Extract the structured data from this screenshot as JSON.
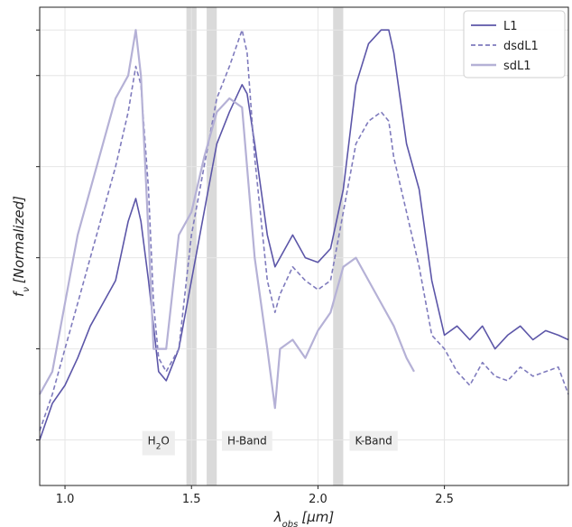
{
  "chart_data": {
    "type": "line",
    "xlabel": "λobs [μm]",
    "xlabel_parts": {
      "sym": "λ",
      "sub": "obs",
      "unit": "[μm]"
    },
    "ylabel": "fν [Normalized]",
    "ylabel_parts": {
      "sym": "f",
      "sub": "ν",
      "rest": "[Normalized]"
    },
    "xlim": [
      0.9,
      2.99
    ],
    "ylim": [
      0,
      1.05
    ],
    "x_ticks": [
      1.0,
      1.5,
      2.0,
      2.5
    ],
    "x_tick_labels": [
      "1.0",
      "1.5",
      "2.0",
      "2.5"
    ],
    "y_ticks": [
      0.1,
      0.3,
      0.5,
      0.7,
      0.9,
      1.0
    ],
    "grid": true,
    "legend": "top-right",
    "colors": {
      "L1": "#5c56a8",
      "dsdL1": "#7f7bbd",
      "sdL1": "#b5b1d6",
      "band": "#d6d6d6",
      "label_bg": "#eeeeee"
    },
    "absorption_bands": [
      [
        1.48,
        1.52
      ],
      [
        1.56,
        1.6
      ],
      [
        2.06,
        2.1
      ]
    ],
    "band_labels": [
      {
        "text": "H",
        "sub": "2",
        "tail": "O",
        "x": 1.37
      },
      {
        "text": "H-Band",
        "sub": "",
        "tail": "",
        "x": 1.72
      },
      {
        "text": "K-Band",
        "sub": "",
        "tail": "",
        "x": 2.22
      }
    ],
    "series": [
      {
        "name": "L1",
        "style": "solid",
        "x": [
          0.9,
          0.95,
          1.0,
          1.05,
          1.1,
          1.15,
          1.2,
          1.25,
          1.28,
          1.3,
          1.33,
          1.35,
          1.37,
          1.4,
          1.45,
          1.5,
          1.55,
          1.6,
          1.65,
          1.7,
          1.72,
          1.75,
          1.8,
          1.83,
          1.85,
          1.9,
          1.95,
          2.0,
          2.05,
          2.1,
          2.15,
          2.2,
          2.25,
          2.28,
          2.3,
          2.35,
          2.4,
          2.45,
          2.5,
          2.55,
          2.6,
          2.65,
          2.7,
          2.75,
          2.8,
          2.85,
          2.9,
          2.95,
          2.99
        ],
        "y": [
          0.1,
          0.18,
          0.22,
          0.28,
          0.35,
          0.4,
          0.45,
          0.58,
          0.63,
          0.58,
          0.45,
          0.35,
          0.25,
          0.23,
          0.3,
          0.45,
          0.6,
          0.75,
          0.82,
          0.88,
          0.86,
          0.75,
          0.55,
          0.48,
          0.5,
          0.55,
          0.5,
          0.49,
          0.52,
          0.65,
          0.88,
          0.97,
          1.0,
          1.0,
          0.95,
          0.75,
          0.65,
          0.45,
          0.33,
          0.35,
          0.32,
          0.35,
          0.3,
          0.33,
          0.35,
          0.32,
          0.34,
          0.33,
          0.32
        ]
      },
      {
        "name": "dsdL1",
        "style": "dashed",
        "x": [
          0.9,
          0.95,
          1.0,
          1.05,
          1.1,
          1.15,
          1.2,
          1.25,
          1.28,
          1.3,
          1.33,
          1.35,
          1.37,
          1.4,
          1.45,
          1.5,
          1.55,
          1.6,
          1.65,
          1.7,
          1.72,
          1.75,
          1.8,
          1.83,
          1.85,
          1.9,
          1.95,
          2.0,
          2.05,
          2.1,
          2.15,
          2.2,
          2.25,
          2.28,
          2.3,
          2.35,
          2.4,
          2.45,
          2.5,
          2.55,
          2.6,
          2.65,
          2.7,
          2.75,
          2.8,
          2.85,
          2.9,
          2.95,
          2.99
        ],
        "y": [
          0.12,
          0.2,
          0.3,
          0.4,
          0.5,
          0.6,
          0.7,
          0.82,
          0.92,
          0.88,
          0.65,
          0.4,
          0.28,
          0.25,
          0.3,
          0.55,
          0.7,
          0.85,
          0.92,
          1.0,
          0.95,
          0.72,
          0.45,
          0.38,
          0.42,
          0.48,
          0.45,
          0.43,
          0.45,
          0.6,
          0.75,
          0.8,
          0.82,
          0.8,
          0.72,
          0.6,
          0.48,
          0.33,
          0.3,
          0.25,
          0.22,
          0.27,
          0.24,
          0.23,
          0.26,
          0.24,
          0.25,
          0.26,
          0.2
        ]
      },
      {
        "name": "sdL1",
        "style": "solid",
        "x": [
          0.9,
          0.95,
          1.0,
          1.05,
          1.1,
          1.15,
          1.2,
          1.25,
          1.28,
          1.3,
          1.33,
          1.35,
          1.37,
          1.4,
          1.45,
          1.5,
          1.55,
          1.6,
          1.65,
          1.7,
          1.75,
          1.8,
          1.83,
          1.85,
          1.9,
          1.95,
          2.0,
          2.05,
          2.1,
          2.15,
          2.2,
          2.25,
          2.3,
          2.35,
          2.38
        ],
        "y": [
          0.2,
          0.25,
          0.4,
          0.55,
          0.65,
          0.75,
          0.85,
          0.9,
          1.0,
          0.9,
          0.55,
          0.3,
          0.3,
          0.3,
          0.55,
          0.6,
          0.72,
          0.82,
          0.85,
          0.83,
          0.5,
          0.3,
          0.17,
          0.3,
          0.32,
          0.28,
          0.34,
          0.38,
          0.48,
          0.5,
          0.45,
          0.4,
          0.35,
          0.28,
          0.25
        ]
      }
    ]
  }
}
